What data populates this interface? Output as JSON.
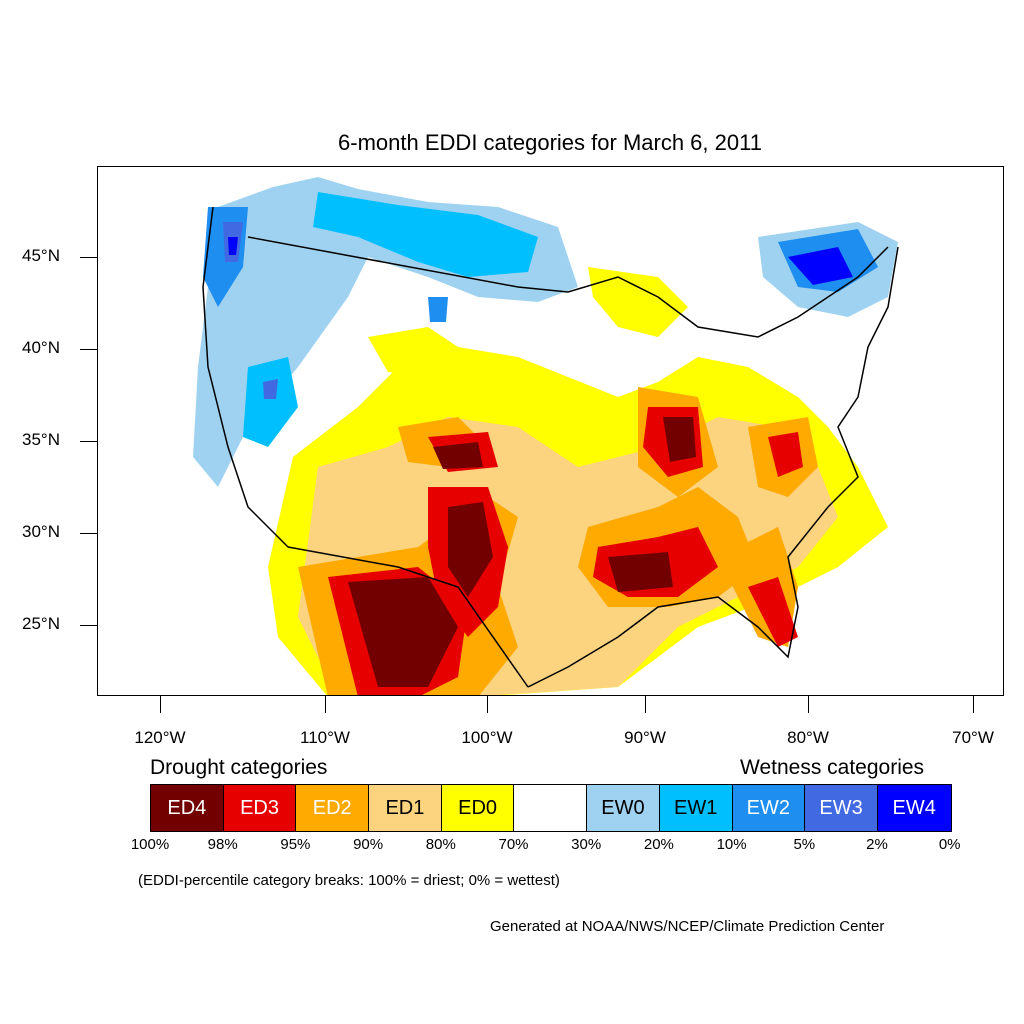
{
  "title": "6-month EDDI categories for March 6, 2011",
  "map": {
    "lat_labels": [
      "45°N",
      "40°N",
      "35°N",
      "30°N",
      "25°N"
    ],
    "lon_labels": [
      "120°W",
      "110°W",
      "100°W",
      "90°W",
      "80°W",
      "70°W"
    ]
  },
  "legend": {
    "drought_heading": "Drought categories",
    "wetness_heading": "Wetness categories",
    "categories": [
      {
        "label": "ED4",
        "color": "#730000",
        "text_color": "#ffffff"
      },
      {
        "label": "ED3",
        "color": "#e60000",
        "text_color": "#ffffff"
      },
      {
        "label": "ED2",
        "color": "#ffaa00",
        "text_color": "#ffffff"
      },
      {
        "label": "ED1",
        "color": "#fcd37f",
        "text_color": "#000000"
      },
      {
        "label": "ED0",
        "color": "#ffff00",
        "text_color": "#000000"
      },
      {
        "label": "",
        "color": "#ffffff",
        "text_color": "#000000"
      },
      {
        "label": "EW0",
        "color": "#9fd2f0",
        "text_color": "#000000"
      },
      {
        "label": "EW1",
        "color": "#00bfff",
        "text_color": "#000000"
      },
      {
        "label": "EW2",
        "color": "#1e8ef0",
        "text_color": "#ffffff"
      },
      {
        "label": "EW3",
        "color": "#4169e1",
        "text_color": "#ffffff"
      },
      {
        "label": "EW4",
        "color": "#0000ff",
        "text_color": "#ffffff"
      }
    ],
    "percentiles": [
      "100%",
      "98%",
      "95%",
      "90%",
      "80%",
      "70%",
      "30%",
      "20%",
      "10%",
      "5%",
      "2%",
      "0%"
    ]
  },
  "note": "(EDDI-percentile category breaks: 100% = driest; 0% = wettest)",
  "credit": "Generated at NOAA/NWS/NCEP/Climate Prediction Center"
}
